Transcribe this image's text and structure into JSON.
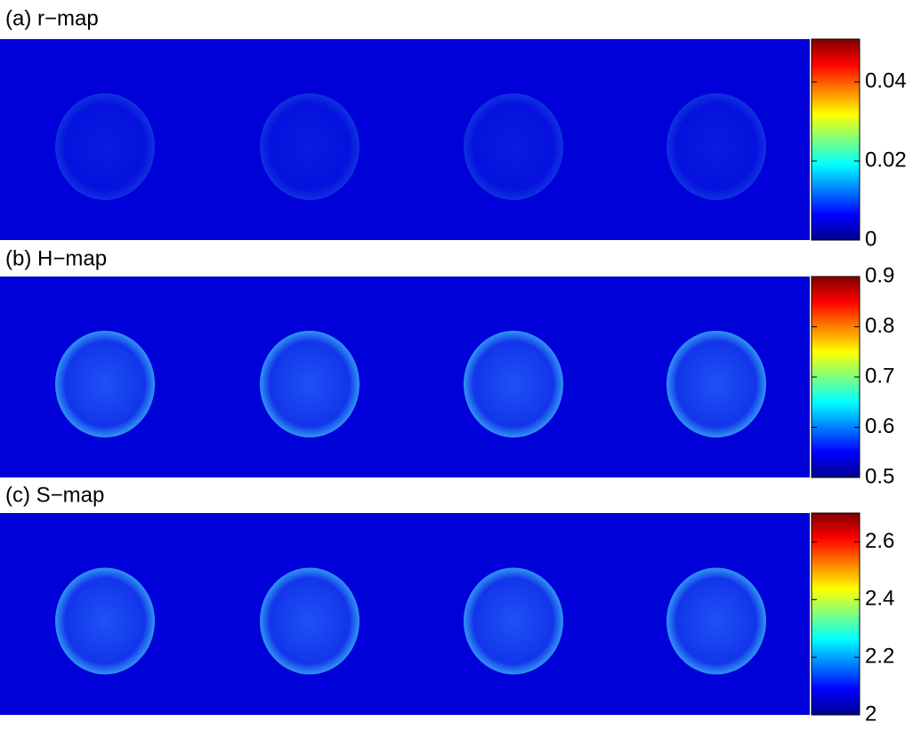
{
  "chart_data": [
    {
      "type": "heatmap",
      "title": "(a) r−map",
      "colormap": "jet",
      "ylim": [
        0,
        0.0508
      ],
      "yticks": [
        0,
        0.02,
        0.04
      ]
    },
    {
      "type": "heatmap",
      "title": "(b) H−map",
      "colormap": "jet",
      "ylim": [
        0.5,
        0.9
      ],
      "yticks": [
        0.5,
        0.6,
        0.7,
        0.8,
        0.9
      ]
    },
    {
      "type": "heatmap",
      "title": "(c) S−map",
      "colormap": "jet",
      "ylim": [
        2,
        2.7
      ],
      "yticks": [
        2,
        2.2,
        2.4,
        2.6
      ]
    }
  ]
}
